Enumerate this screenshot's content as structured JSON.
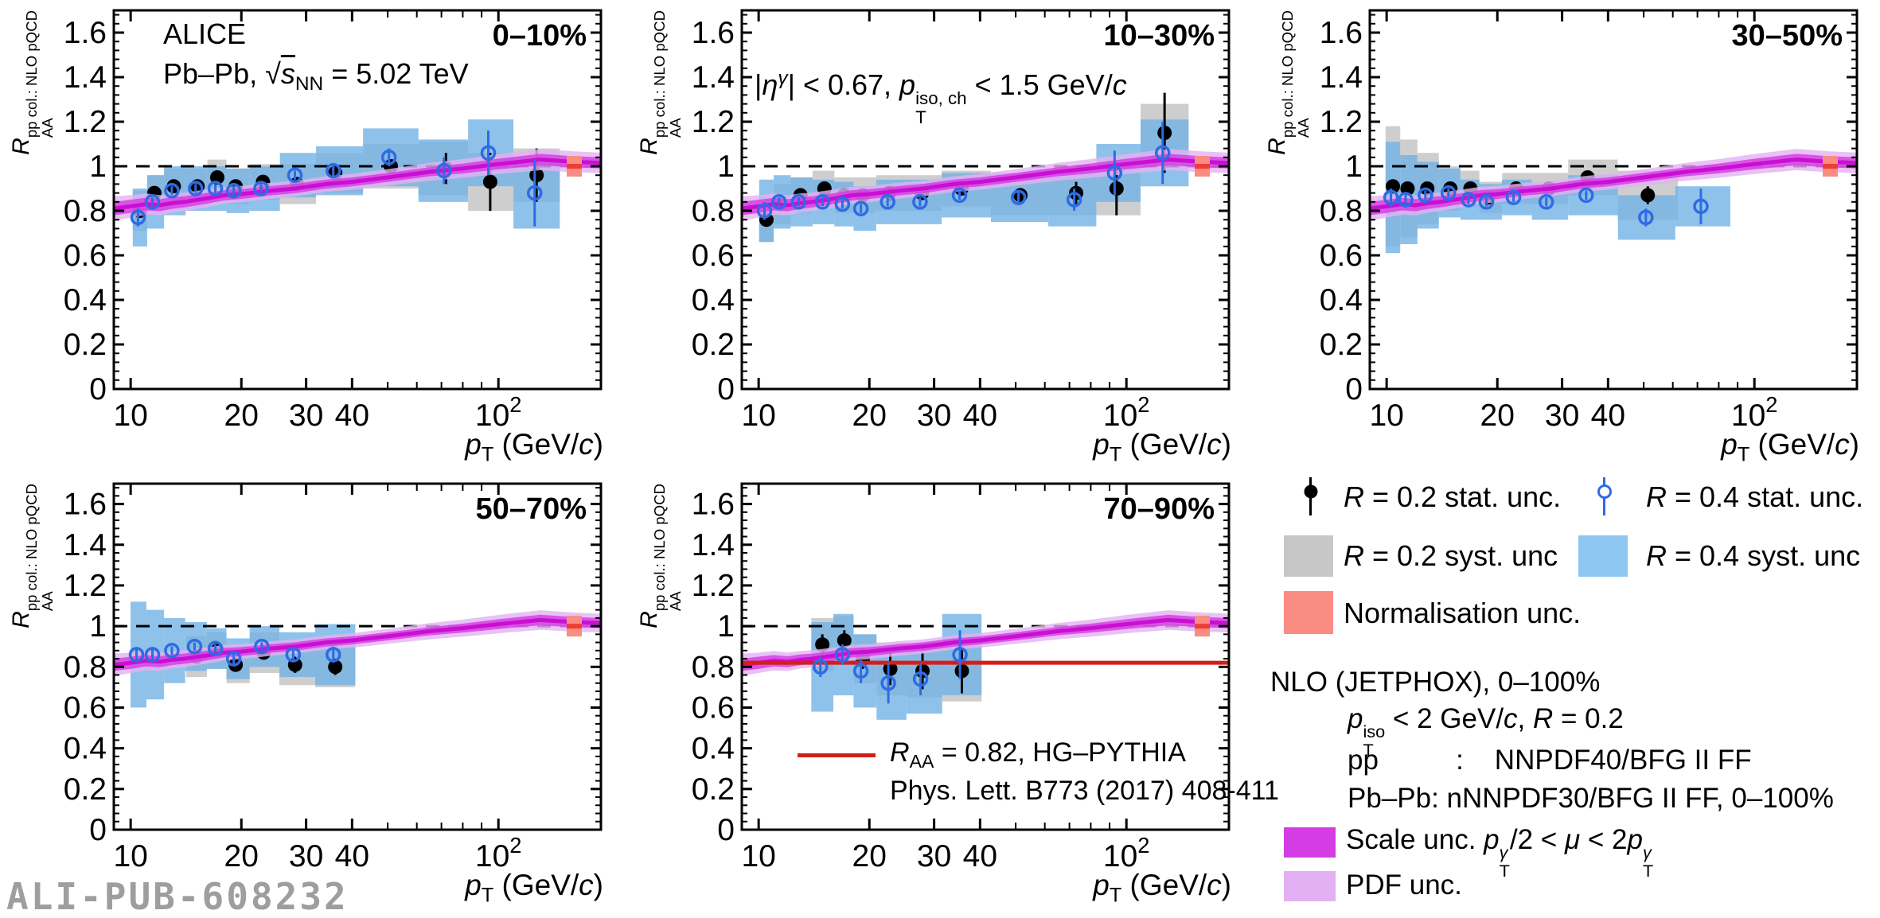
{
  "figure": {
    "watermark": "ALI-PUB-608232"
  },
  "colors": {
    "frame": "#000000",
    "gray_box": "#c7c7c7",
    "blue_box": "#72b3e6",
    "legend_blue_box": "#8ec7f1",
    "scale_band": "#d53ce3",
    "scale_line": "#c90fd2",
    "pdf_band": "#e3b1f3",
    "norm_box": "#fa8c84",
    "norm_dash": "#ee3d33",
    "hg_red": "#d31f1a",
    "blue_marker": "#2e6be4",
    "black_marker": "#000000",
    "watermark_gray": "#9e9e9e"
  },
  "axis": {
    "ylabel_parts": [
      {
        "t": "R",
        "i": 1
      },
      {
        "stk": {
          "sup": [
            {
              "t": "pp col.: NLO pQCD"
            }
          ],
          "sub": [
            {
              "t": "AA"
            }
          ]
        }
      }
    ],
    "xlabel_parts": [
      {
        "t": "p",
        "i": 1
      },
      {
        "t": "T",
        "sub": 1
      },
      {
        "t": " (GeV/"
      },
      {
        "t": "c",
        "i": 1
      },
      {
        "t": ")"
      }
    ],
    "yticks": [
      {
        "v": 0,
        "t": "0"
      },
      {
        "v": 0.2,
        "t": "0.2"
      },
      {
        "v": 0.4,
        "t": "0.4"
      },
      {
        "v": 0.6,
        "t": "0.6"
      },
      {
        "v": 0.8,
        "t": "0.8"
      },
      {
        "v": 1,
        "t": "1"
      },
      {
        "v": 1.2,
        "t": "1.2"
      },
      {
        "v": 1.4,
        "t": "1.4"
      },
      {
        "v": 1.6,
        "t": "1.6"
      }
    ],
    "xtick_labels": [
      {
        "v": 10,
        "t": "10"
      },
      {
        "v": 20,
        "t": "20"
      },
      {
        "v": 30,
        "t": "30"
      },
      {
        "v": 40,
        "t": "40"
      },
      {
        "v": 100,
        "t": "10",
        "sup": "2"
      }
    ],
    "xticks_minor": [
      50,
      60,
      70,
      80,
      90
    ],
    "xlim": [
      9,
      190
    ],
    "ylim": [
      0,
      1.7
    ],
    "dashed_ref": 1.0
  },
  "annotations": {
    "alice": "ALICE",
    "collision_parts": [
      {
        "t": "Pb–Pb, "
      },
      {
        "t": "√"
      },
      {
        "t": "s",
        "i": 1,
        "o": 1
      },
      {
        "t": "NN",
        "sub": 1
      },
      {
        "t": " = 5.02 TeV"
      }
    ],
    "cut_parts": [
      {
        "t": "|"
      },
      {
        "t": "η",
        "i": 1
      },
      {
        "t": "γ",
        "sup": 1,
        "i": 1
      },
      {
        "t": "| < 0.67, "
      },
      {
        "t": "p",
        "i": 1
      },
      {
        "stk": {
          "sup": [
            {
              "t": "iso, ch"
            }
          ],
          "sub": [
            {
              "t": "T"
            }
          ]
        }
      },
      {
        "t": " < 1.5 GeV/"
      },
      {
        "t": "c",
        "i": 1
      }
    ]
  },
  "hg_legend": {
    "line1_parts": [
      {
        "t": "R",
        "i": 1
      },
      {
        "t": "AA",
        "sub": 1
      },
      {
        "t": " = 0.82, HG–PYTHIA"
      }
    ],
    "line2": "Phys. Lett. B773 (2017) 408-411"
  },
  "legend": {
    "r02_stat_parts": [
      {
        "t": "R",
        "i": 1
      },
      {
        "t": " = 0.2 stat. unc."
      }
    ],
    "r04_stat_parts": [
      {
        "t": "R",
        "i": 1
      },
      {
        "t": " = 0.4 stat. unc."
      }
    ],
    "r02_syst_parts": [
      {
        "t": "R",
        "i": 1
      },
      {
        "t": " = 0.2 syst. unc"
      }
    ],
    "r04_syst_parts": [
      {
        "t": "R",
        "i": 1
      },
      {
        "t": " = 0.4 syst. unc"
      }
    ],
    "norm": "Normalisation unc.",
    "nlo_title": "NLO (JETPHOX), 0–100%",
    "nlo_cut_parts": [
      {
        "t": "p",
        "i": 1
      },
      {
        "stk": {
          "sup": [
            {
              "t": "iso"
            }
          ],
          "sub": [
            {
              "t": "T"
            }
          ]
        }
      },
      {
        "t": " < 2 GeV/"
      },
      {
        "t": "c",
        "i": 1
      },
      {
        "t": ", "
      },
      {
        "t": "R",
        "i": 1
      },
      {
        "t": " = 0.2"
      }
    ],
    "nlo_pp": "pp          :    NNPDF40/BFG II FF",
    "nlo_pbpb": "Pb–Pb: nNNPDF30/BFG II FF, 0–100%",
    "scale_parts": [
      {
        "t": "Scale unc. "
      },
      {
        "t": "p",
        "i": 1
      },
      {
        "stk": {
          "sup": [
            {
              "t": "γ",
              "i": 1
            }
          ],
          "sub": [
            {
              "t": "T"
            }
          ]
        }
      },
      {
        "t": "/2 < "
      },
      {
        "t": "μ",
        "i": 1
      },
      {
        "t": " < 2"
      },
      {
        "t": "p",
        "i": 1
      },
      {
        "stk": {
          "sup": [
            {
              "t": "γ",
              "i": 1
            }
          ],
          "sub": [
            {
              "t": "T"
            }
          ]
        }
      }
    ],
    "pdf": "PDF unc."
  },
  "chart_data": {
    "type": "scatter",
    "x_scale": "log",
    "panels": [
      {
        "id": "0-10",
        "label": "0–10%",
        "r02": {
          "pt": [
            10.6,
            11.6,
            13.1,
            15.2,
            17.2,
            19.3,
            22.9,
            28.3,
            36,
            51,
            72,
            95,
            127
          ],
          "raa": [
            0.8,
            0.88,
            0.91,
            0.91,
            0.95,
            0.91,
            0.93,
            0.92,
            0.97,
            1.0,
            0.99,
            0.93,
            0.96
          ],
          "stat": [
            0.03,
            0.02,
            0.02,
            0.02,
            0.02,
            0.02,
            0.02,
            0.02,
            0.02,
            0.03,
            0.07,
            0.13,
            0.12
          ],
          "syst": [
            0.09,
            0.08,
            0.08,
            0.08,
            0.08,
            0.08,
            0.08,
            0.09,
            0.09,
            0.1,
            0.12,
            0.13,
            0.12
          ]
        },
        "r04": {
          "pt": [
            10.6,
            11.6,
            13.1,
            15.2,
            17.2,
            19.3,
            22.9,
            28.3,
            36,
            51,
            72,
            95,
            127
          ],
          "raa": [
            0.77,
            0.84,
            0.89,
            0.9,
            0.9,
            0.89,
            0.9,
            0.96,
            0.98,
            1.04,
            0.98,
            1.06,
            0.88
          ],
          "stat": [
            0.04,
            0.02,
            0.02,
            0.02,
            0.02,
            0.02,
            0.02,
            0.02,
            0.03,
            0.04,
            0.06,
            0.1,
            0.15
          ],
          "syst": [
            0.13,
            0.12,
            0.11,
            0.1,
            0.1,
            0.1,
            0.1,
            0.1,
            0.11,
            0.13,
            0.14,
            0.15,
            0.16
          ]
        }
      },
      {
        "id": "10-30",
        "label": "10–30%",
        "r02": {
          "pt": [
            10.5,
            11.5,
            13,
            15.1,
            17.1,
            19.2,
            22.7,
            27.8,
            35.6,
            51.5,
            73,
            94,
            127
          ],
          "raa": [
            0.76,
            0.83,
            0.87,
            0.9,
            0.87,
            0.87,
            0.88,
            0.88,
            0.9,
            0.87,
            0.88,
            0.9,
            1.15
          ],
          "stat": [
            0.03,
            0.02,
            0.02,
            0.02,
            0.02,
            0.02,
            0.02,
            0.02,
            0.02,
            0.02,
            0.05,
            0.12,
            0.18
          ],
          "syst": [
            0.1,
            0.09,
            0.08,
            0.08,
            0.08,
            0.08,
            0.08,
            0.08,
            0.08,
            0.09,
            0.1,
            0.12,
            0.13
          ]
        },
        "r04": {
          "pt": [
            10.5,
            11.5,
            13,
            15.1,
            17.1,
            19.2,
            22.7,
            27.8,
            35.6,
            51.5,
            73,
            94,
            127
          ],
          "raa": [
            0.8,
            0.84,
            0.84,
            0.84,
            0.83,
            0.81,
            0.84,
            0.84,
            0.87,
            0.86,
            0.85,
            0.97,
            1.06
          ],
          "stat": [
            0.04,
            0.02,
            0.02,
            0.02,
            0.02,
            0.02,
            0.02,
            0.02,
            0.02,
            0.03,
            0.05,
            0.1,
            0.14
          ],
          "syst": [
            0.14,
            0.12,
            0.11,
            0.1,
            0.1,
            0.1,
            0.1,
            0.1,
            0.1,
            0.11,
            0.12,
            0.13,
            0.15
          ]
        }
      },
      {
        "id": "30-50",
        "label": "30–50%",
        "r02": {
          "pt": [
            10.4,
            11.4,
            12.9,
            14.9,
            16.9,
            18.9,
            22.5,
            27.6,
            35.2,
            51.3
          ],
          "raa": [
            0.91,
            0.9,
            0.9,
            0.9,
            0.9,
            0.86,
            0.9,
            0.9,
            0.95,
            0.87
          ],
          "stat": [
            0.03,
            0.02,
            0.02,
            0.02,
            0.02,
            0.02,
            0.02,
            0.02,
            0.03,
            0.04
          ],
          "syst": [
            0.27,
            0.22,
            0.16,
            0.1,
            0.08,
            0.07,
            0.07,
            0.07,
            0.08,
            0.11
          ]
        },
        "r04": {
          "pt": [
            10.4,
            11.4,
            12.9,
            14.9,
            16.9,
            18.9,
            22.4,
            27.5,
            35.3,
            51.3,
            72.4
          ],
          "raa": [
            0.86,
            0.85,
            0.87,
            0.88,
            0.85,
            0.84,
            0.86,
            0.84,
            0.87,
            0.77,
            0.82
          ],
          "stat": [
            0.04,
            0.03,
            0.02,
            0.02,
            0.02,
            0.02,
            0.02,
            0.02,
            0.02,
            0.04,
            0.08
          ],
          "syst": [
            0.25,
            0.2,
            0.15,
            0.11,
            0.09,
            0.08,
            0.08,
            0.08,
            0.09,
            0.1,
            0.09
          ]
        }
      },
      {
        "id": "50-70",
        "label": "50–70%",
        "r02": {
          "pt": [
            15.1,
            17.2,
            19.3,
            23,
            28,
            36
          ],
          "raa": [
            0.85,
            0.88,
            0.81,
            0.87,
            0.81,
            0.8
          ],
          "stat": [
            0.02,
            0.02,
            0.03,
            0.02,
            0.04,
            0.04
          ],
          "syst": [
            0.1,
            0.09,
            0.09,
            0.1,
            0.1,
            0.1
          ]
        },
        "r04": {
          "pt": [
            10.5,
            11.6,
            13.1,
            15.1,
            17.2,
            19.3,
            23,
            28,
            36
          ],
          "raa": [
            0.86,
            0.86,
            0.88,
            0.9,
            0.89,
            0.84,
            0.9,
            0.86,
            0.86
          ],
          "stat": [
            0.03,
            0.03,
            0.02,
            0.02,
            0.02,
            0.03,
            0.02,
            0.03,
            0.04
          ],
          "syst": [
            0.26,
            0.22,
            0.16,
            0.12,
            0.1,
            0.1,
            0.1,
            0.11,
            0.15
          ]
        }
      },
      {
        "id": "70-90",
        "label": "70–90%",
        "hg_line": 0.82,
        "r02": {
          "pt": [
            14.9,
            17.1,
            19.2,
            22.8,
            27.9,
            35.7
          ],
          "raa": [
            0.91,
            0.93,
            0.84,
            0.79,
            0.78,
            0.78
          ],
          "stat": [
            0.05,
            0.05,
            0.05,
            0.08,
            0.09,
            0.11
          ],
          "syst": [
            0.13,
            0.12,
            0.12,
            0.13,
            0.13,
            0.15
          ]
        },
        "r04": {
          "pt": [
            14.9,
            17.1,
            19.2,
            22.8,
            27.9,
            35.7
          ],
          "raa": [
            0.8,
            0.86,
            0.78,
            0.72,
            0.74,
            0.86
          ],
          "stat": [
            0.05,
            0.05,
            0.06,
            0.1,
            0.08,
            0.12
          ],
          "syst": [
            0.22,
            0.2,
            0.18,
            0.18,
            0.17,
            0.2
          ]
        }
      }
    ],
    "theory": {
      "pt": [
        9,
        10,
        11,
        12,
        13,
        14,
        16,
        18,
        20,
        24,
        28,
        34,
        40,
        50,
        65,
        80,
        100,
        130,
        160,
        190
      ],
      "central": [
        0.81,
        0.82,
        0.83,
        0.825,
        0.835,
        0.84,
        0.855,
        0.87,
        0.875,
        0.89,
        0.9,
        0.92,
        0.93,
        0.95,
        0.975,
        0.99,
        1.01,
        1.03,
        1.02,
        1.015
      ],
      "scale_half": [
        0.03,
        0.03,
        0.028,
        0.027,
        0.026,
        0.025,
        0.024,
        0.023,
        0.022,
        0.021,
        0.021,
        0.02,
        0.02,
        0.02,
        0.02,
        0.022,
        0.024,
        0.026,
        0.025,
        0.025
      ],
      "pdf_half": [
        0.055,
        0.05,
        0.048,
        0.045,
        0.043,
        0.042,
        0.04,
        0.038,
        0.037,
        0.036,
        0.035,
        0.035,
        0.036,
        0.037,
        0.04,
        0.042,
        0.045,
        0.048,
        0.047,
        0.046
      ]
    }
  }
}
